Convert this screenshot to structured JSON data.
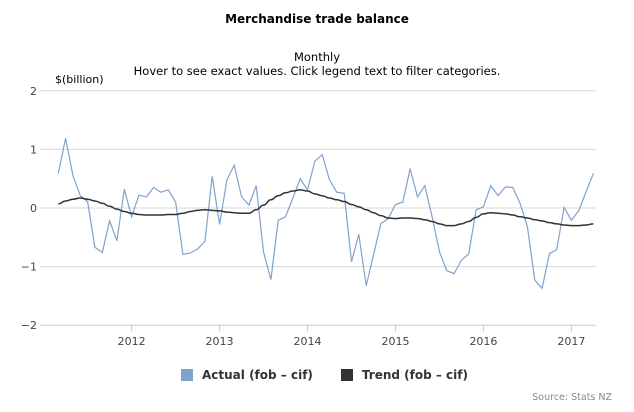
{
  "chart_data": {
    "type": "line",
    "title": "Merchandise trade balance",
    "subtitle": "Monthly",
    "instructions": "Hover to see exact values. Click legend text to filter categories.",
    "ylabel": "$(billion)",
    "ylim": [
      -2,
      2
    ],
    "yticks": [
      "2",
      "1",
      "0",
      "−1",
      "−2"
    ],
    "xticks": [
      "2012",
      "2013",
      "2014",
      "2015",
      "2016",
      "2017"
    ],
    "x_start": "2011-03",
    "x_end": "2017-04",
    "frequency": "monthly",
    "grid": true,
    "legend_placement": "bottom",
    "series": [
      {
        "name": "Actual (fob – cif)",
        "color": "#7fa3cc",
        "values": [
          0.59,
          1.19,
          0.55,
          0.21,
          0.11,
          -0.67,
          -0.76,
          -0.22,
          -0.56,
          0.32,
          -0.15,
          0.22,
          0.19,
          0.35,
          0.27,
          0.31,
          0.1,
          -0.79,
          -0.77,
          -0.7,
          -0.57,
          0.54,
          -0.28,
          0.48,
          0.73,
          0.19,
          0.05,
          0.38,
          -0.75,
          -1.22,
          -0.21,
          -0.15,
          0.17,
          0.5,
          0.31,
          0.8,
          0.91,
          0.48,
          0.27,
          0.25,
          -0.92,
          -0.45,
          -1.33,
          -0.8,
          -0.27,
          -0.18,
          0.06,
          0.1,
          0.67,
          0.19,
          0.38,
          -0.15,
          -0.75,
          -1.07,
          -1.12,
          -0.89,
          -0.78,
          -0.03,
          0.02,
          0.38,
          0.21,
          0.36,
          0.35,
          0.08,
          -0.32,
          -1.23,
          -1.37,
          -0.78,
          -0.71,
          0.01,
          -0.21,
          -0.05,
          0.28,
          0.59
        ]
      },
      {
        "name": "Trend (fob – cif)",
        "color": "#333333",
        "values": [
          0.07,
          0.12,
          0.15,
          0.17,
          0.15,
          0.12,
          0.08,
          0.03,
          -0.02,
          -0.06,
          -0.09,
          -0.11,
          -0.12,
          -0.12,
          -0.12,
          -0.11,
          -0.11,
          -0.09,
          -0.06,
          -0.04,
          -0.03,
          -0.04,
          -0.05,
          -0.07,
          -0.08,
          -0.09,
          -0.09,
          -0.03,
          0.05,
          0.14,
          0.21,
          0.26,
          0.29,
          0.31,
          0.29,
          0.24,
          0.21,
          0.17,
          0.14,
          0.11,
          0.06,
          0.02,
          -0.03,
          -0.08,
          -0.13,
          -0.17,
          -0.18,
          -0.17,
          -0.17,
          -0.18,
          -0.2,
          -0.23,
          -0.27,
          -0.3,
          -0.3,
          -0.27,
          -0.23,
          -0.16,
          -0.1,
          -0.08,
          -0.09,
          -0.1,
          -0.12,
          -0.15,
          -0.17,
          -0.2,
          -0.22,
          -0.25,
          -0.27,
          -0.29,
          -0.3,
          -0.3,
          -0.29,
          -0.27
        ]
      }
    ],
    "source": "Source: Stats NZ"
  }
}
